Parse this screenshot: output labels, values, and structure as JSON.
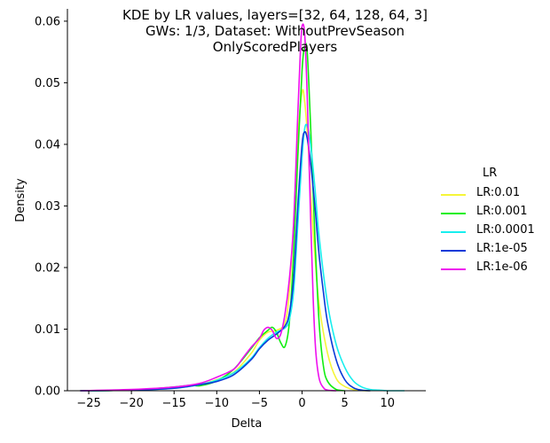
{
  "chart_data": {
    "type": "line",
    "title": [
      "KDE by LR values, layers=[32, 64, 128, 64, 3]",
      "GWs: 1/3, Dataset: WithoutPrevSeason",
      "OnlyScoredPlayers"
    ],
    "xlabel": "Delta",
    "ylabel": "Density",
    "xlim": [
      -27.5,
      14.5
    ],
    "ylim": [
      0,
      0.062
    ],
    "xticks": [
      -25,
      -20,
      -15,
      -10,
      -5,
      0,
      5,
      10
    ],
    "yticks": [
      0.0,
      0.01,
      0.02,
      0.03,
      0.04,
      0.05,
      0.06
    ],
    "grid": false,
    "legend": {
      "title": "LR",
      "placement": "right"
    },
    "series": [
      {
        "name": "LR:0.01",
        "color": "#f5f538",
        "x": [
          -26,
          -20,
          -15,
          -12,
          -10,
          -8,
          -6,
          -5,
          -4,
          -3,
          -2,
          -1.5,
          -1,
          -0.5,
          0,
          0.3,
          0.7,
          1,
          1.5,
          2,
          3,
          4,
          5,
          6,
          7,
          8
        ],
        "y": [
          0,
          0.0001,
          0.0005,
          0.001,
          0.0018,
          0.003,
          0.006,
          0.0082,
          0.0095,
          0.0098,
          0.011,
          0.016,
          0.027,
          0.041,
          0.0485,
          0.047,
          0.04,
          0.032,
          0.022,
          0.014,
          0.006,
          0.002,
          0.0007,
          0.0002,
          5e-05,
          0
        ]
      },
      {
        "name": "LR:0.001",
        "color": "#10ee10",
        "x": [
          -26,
          -20,
          -15,
          -13,
          -12,
          -10,
          -8,
          -6,
          -5,
          -4,
          -3.5,
          -3,
          -2.5,
          -2,
          -1.5,
          -1,
          -0.5,
          0,
          0.3,
          0.6,
          1,
          1.5,
          2,
          2.5,
          3,
          4,
          5
        ],
        "y": [
          0,
          0.0001,
          0.0006,
          0.0009,
          0.0008,
          0.0016,
          0.0035,
          0.0068,
          0.0086,
          0.0098,
          0.0103,
          0.0095,
          0.0078,
          0.0072,
          0.011,
          0.022,
          0.038,
          0.052,
          0.0558,
          0.055,
          0.043,
          0.025,
          0.011,
          0.004,
          0.0015,
          0.0002,
          0
        ]
      },
      {
        "name": "LR:0.0001",
        "color": "#18eeee",
        "x": [
          -26,
          -20,
          -15,
          -12,
          -10,
          -8,
          -6,
          -5,
          -4,
          -3,
          -2,
          -1.5,
          -1,
          -0.5,
          0,
          0.3,
          0.6,
          1,
          1.5,
          2,
          3,
          4,
          5,
          6,
          7,
          8,
          9,
          10,
          12
        ],
        "y": [
          0,
          0.0001,
          0.0004,
          0.001,
          0.0017,
          0.0029,
          0.0052,
          0.007,
          0.0085,
          0.0095,
          0.0102,
          0.0115,
          0.016,
          0.027,
          0.038,
          0.0425,
          0.043,
          0.04,
          0.033,
          0.025,
          0.014,
          0.0075,
          0.0038,
          0.0016,
          0.0006,
          0.0002,
          0.0001,
          0,
          0
        ]
      },
      {
        "name": "LR:1e-05",
        "color": "#0a3ad8",
        "x": [
          -26,
          -20,
          -15,
          -12,
          -10,
          -8,
          -6,
          -5,
          -4,
          -3,
          -2,
          -1.5,
          -1,
          -0.5,
          0,
          0.3,
          0.6,
          1,
          1.5,
          2,
          2.5,
          3,
          4,
          5,
          6,
          7,
          8
        ],
        "y": [
          0,
          0.0001,
          0.0004,
          0.001,
          0.0015,
          0.0026,
          0.005,
          0.0068,
          0.0082,
          0.0092,
          0.0105,
          0.0125,
          0.018,
          0.03,
          0.04,
          0.042,
          0.041,
          0.037,
          0.03,
          0.022,
          0.016,
          0.011,
          0.005,
          0.0018,
          0.0005,
          0.0001,
          0
        ]
      },
      {
        "name": "LR:1e-06",
        "color": "#ee10ee",
        "x": [
          -26,
          -20,
          -15,
          -12,
          -10,
          -8,
          -7,
          -6,
          -5,
          -4.5,
          -4,
          -3.5,
          -3,
          -2.5,
          -2,
          -1.5,
          -1,
          -0.5,
          -0.2,
          0,
          0.3,
          0.6,
          1,
          1.3,
          1.6,
          2,
          2.5,
          3,
          4
        ],
        "y": [
          0,
          0.0002,
          0.0006,
          0.0012,
          0.0022,
          0.0035,
          0.0052,
          0.007,
          0.0085,
          0.0098,
          0.0103,
          0.0098,
          0.0085,
          0.0092,
          0.0125,
          0.018,
          0.027,
          0.045,
          0.055,
          0.0592,
          0.058,
          0.048,
          0.028,
          0.015,
          0.0065,
          0.002,
          0.0005,
          0.0001,
          0
        ]
      }
    ]
  }
}
